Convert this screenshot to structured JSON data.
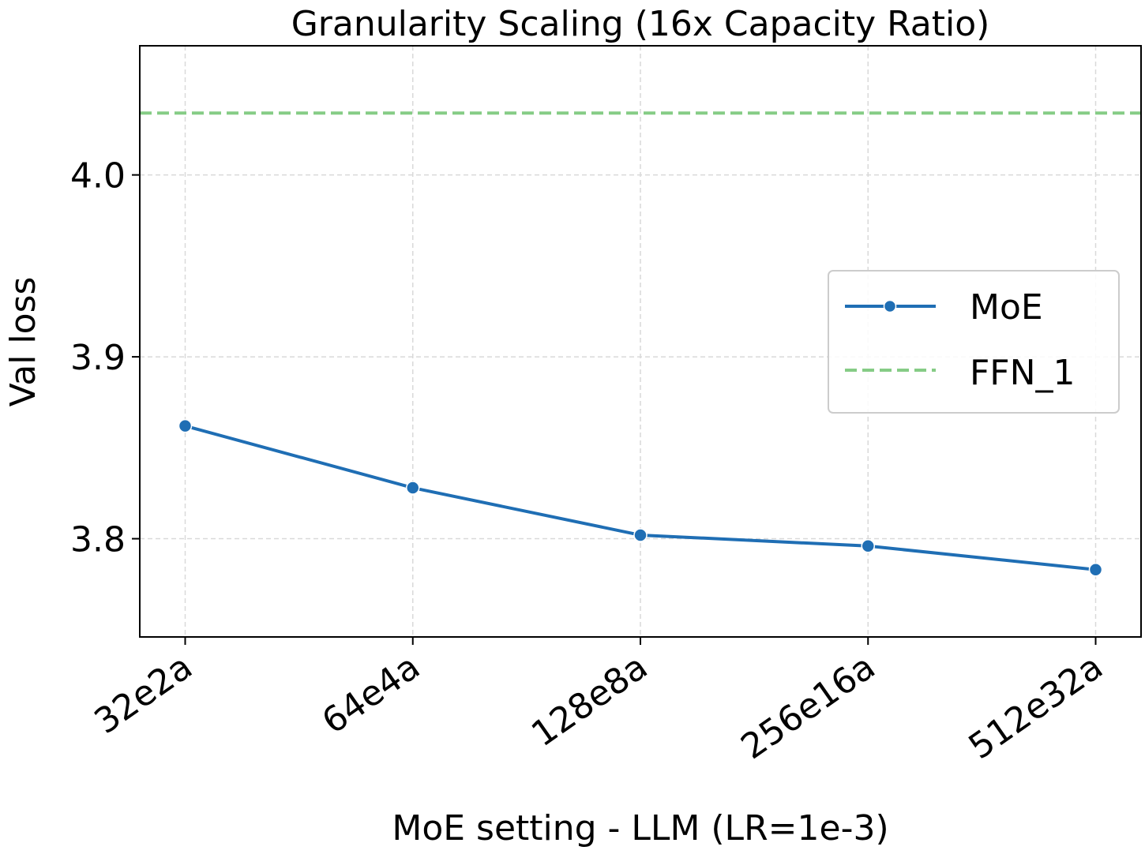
{
  "chart_data": {
    "type": "line",
    "title": "Granularity Scaling (16x Capacity Ratio)",
    "xlabel": "MoE setting - LLM (LR=1e-3)",
    "ylabel": "Val loss",
    "categories": [
      "32e2a",
      "64e4a",
      "128e8a",
      "256e16a",
      "512e32a"
    ],
    "series": [
      {
        "name": "MoE",
        "values": [
          3.862,
          3.828,
          3.802,
          3.796,
          3.783
        ],
        "color": "#1f6eb4",
        "marker": "circle",
        "style": "solid"
      }
    ],
    "reference_lines": [
      {
        "name": "FFN_1",
        "value": 4.034,
        "color": "#86cc86",
        "style": "dashed"
      }
    ],
    "yticks": [
      "3.8",
      "3.9",
      "4.0"
    ],
    "ylim": [
      3.746,
      4.071
    ],
    "grid": true,
    "legend_position": "center-right"
  }
}
